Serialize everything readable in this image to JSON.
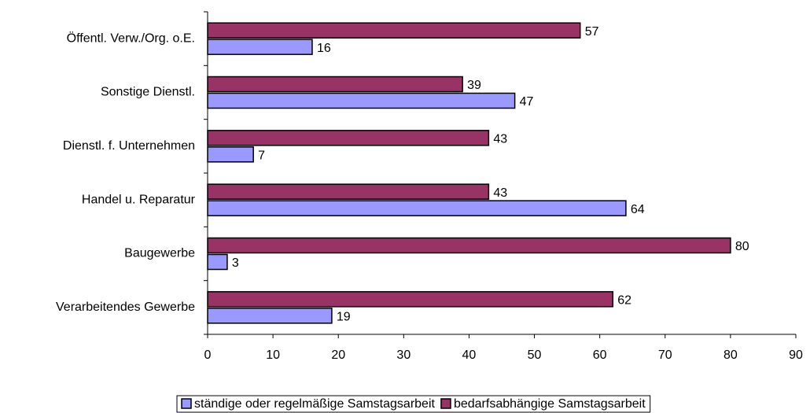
{
  "chart_data": {
    "type": "hbar",
    "categories": [
      "Öffentl. Verw./Org. o.E.",
      "Sonstige Dienstl.",
      "Dienstl. f. Unternehmen",
      "Handel u. Reparatur",
      "Baugewerbe",
      "Verarbeitendes Gewerbe"
    ],
    "series": [
      {
        "name": "ständige oder regelmäßige Samstagsarbeit",
        "color": "#9999ff",
        "values": [
          16,
          47,
          7,
          64,
          3,
          19
        ]
      },
      {
        "name": "bedarfsabhängige Samstagsarbeit",
        "color": "#993366",
        "values": [
          57,
          39,
          43,
          43,
          80,
          62
        ]
      }
    ],
    "xlim": [
      0,
      90
    ],
    "xticks": [
      0,
      10,
      20,
      30,
      40,
      50,
      60,
      70,
      80,
      90
    ],
    "legend": "bottom"
  }
}
